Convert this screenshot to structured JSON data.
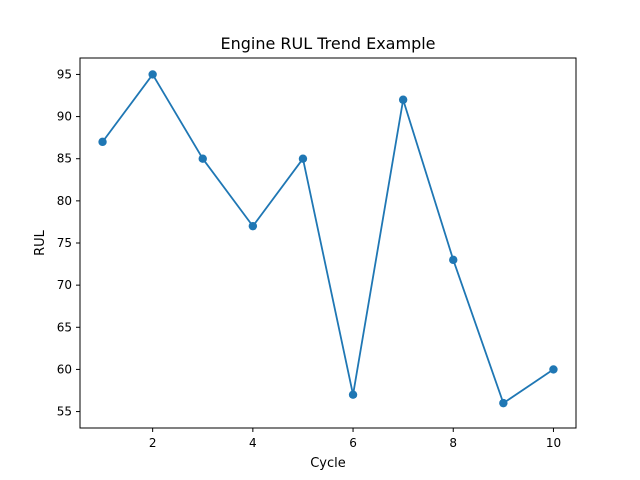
{
  "chart_data": {
    "type": "line",
    "title": "Engine RUL Trend Example",
    "xlabel": "Cycle",
    "ylabel": "RUL",
    "x": [
      1,
      2,
      3,
      4,
      5,
      6,
      7,
      8,
      9,
      10
    ],
    "series": [
      {
        "values": [
          87,
          95,
          85,
          77,
          85,
          57,
          92,
          73,
          56,
          60
        ],
        "color": "#1f77b4",
        "marker": "circle"
      }
    ],
    "xlim": [
      0.55,
      10.45
    ],
    "ylim": [
      53.05,
      96.95
    ],
    "xticks": [
      2,
      4,
      6,
      8,
      10
    ],
    "yticks": [
      55,
      60,
      65,
      70,
      75,
      80,
      85,
      90,
      95
    ],
    "grid": false,
    "legend": false
  }
}
